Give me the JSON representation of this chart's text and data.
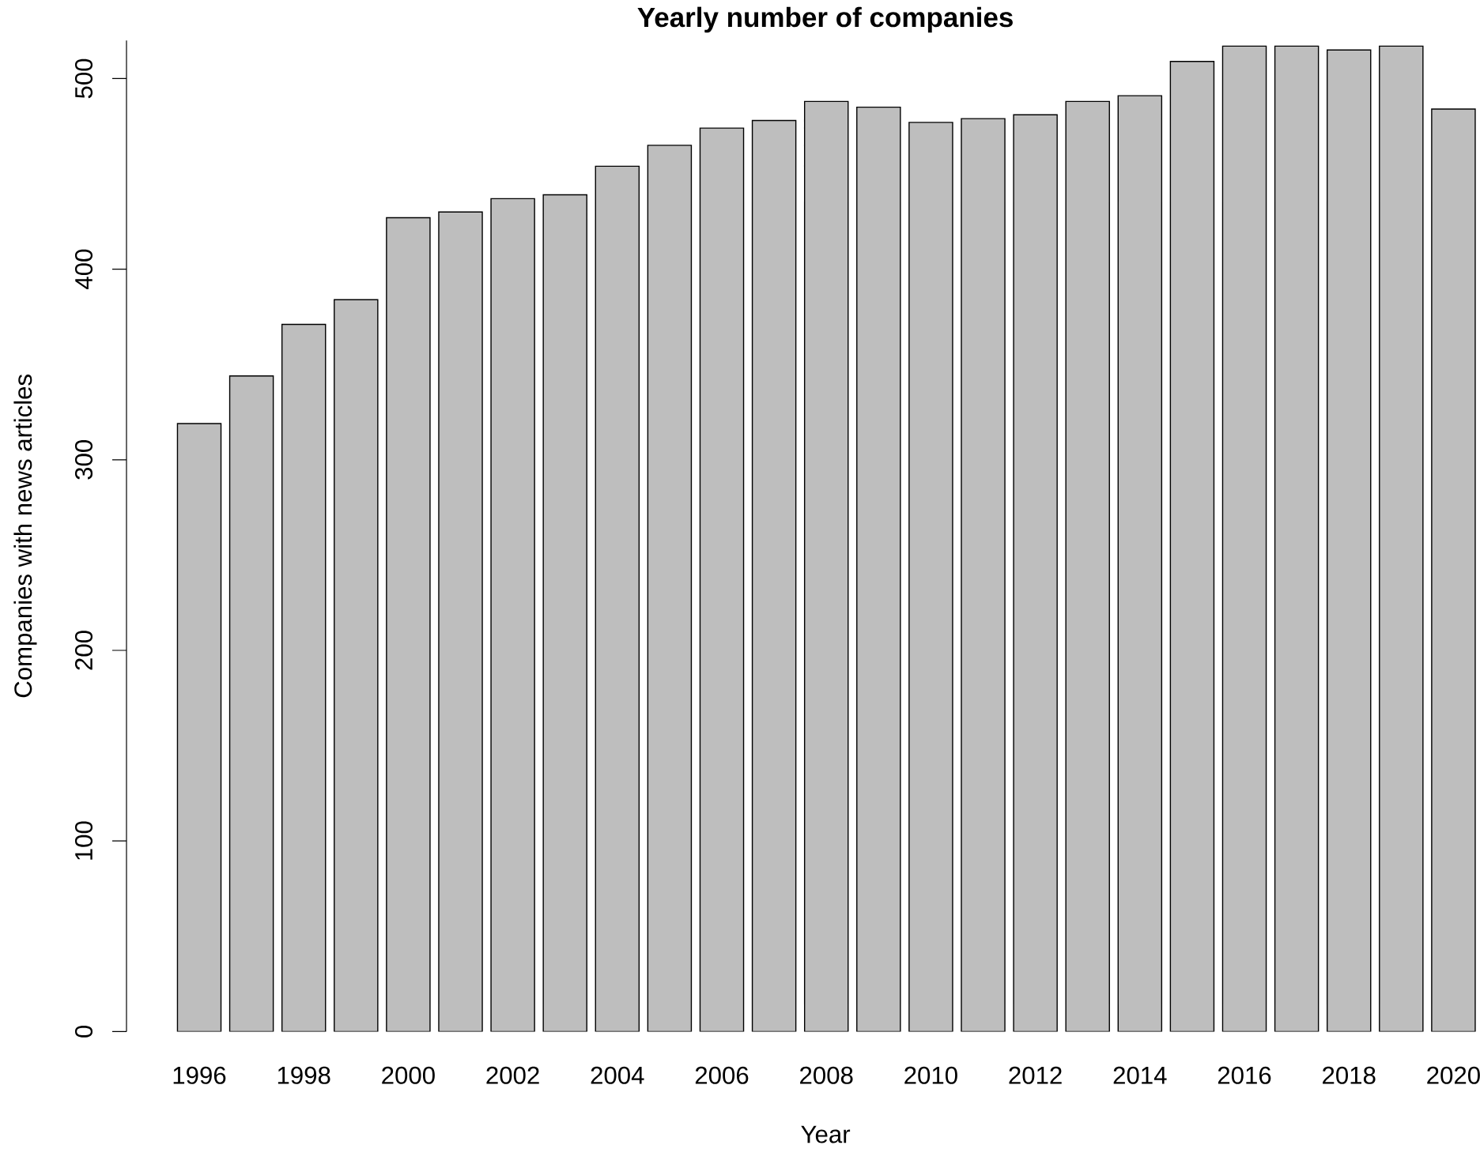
{
  "chart_data": {
    "type": "bar",
    "title": "Yearly number of companies",
    "xlabel": "Year",
    "ylabel": "Companies with news articles",
    "categories": [
      "1996",
      null,
      "1998",
      null,
      "2000",
      null,
      "2002",
      null,
      "2004",
      null,
      "2006",
      null,
      "2008",
      null,
      "2010",
      null,
      "2012",
      null,
      "2014",
      null,
      "2016",
      null,
      "2018",
      null,
      "2020"
    ],
    "values": [
      319,
      344,
      371,
      384,
      427,
      430,
      437,
      439,
      454,
      465,
      474,
      478,
      488,
      485,
      477,
      479,
      481,
      488,
      491,
      509,
      517,
      517,
      515,
      517,
      484
    ],
    "color": "#bebebe",
    "ylim": [
      0,
      520
    ],
    "yticks": [
      0,
      100,
      200,
      300,
      400,
      500
    ]
  }
}
